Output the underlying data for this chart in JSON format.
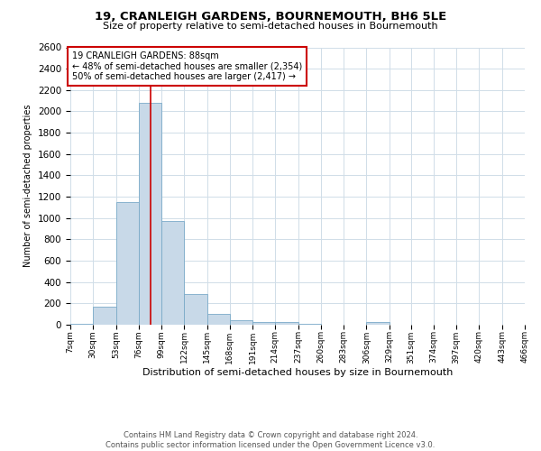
{
  "title": "19, CRANLEIGH GARDENS, BOURNEMOUTH, BH6 5LE",
  "subtitle": "Size of property relative to semi-detached houses in Bournemouth",
  "xlabel": "Distribution of semi-detached houses by size in Bournemouth",
  "ylabel": "Number of semi-detached properties",
  "footer_line1": "Contains HM Land Registry data © Crown copyright and database right 2024.",
  "footer_line2": "Contains public sector information licensed under the Open Government Licence v3.0.",
  "property_label": "19 CRANLEIGH GARDENS: 88sqm",
  "annotation_line2": "← 48% of semi-detached houses are smaller (2,354)",
  "annotation_line3": "50% of semi-detached houses are larger (2,417) →",
  "property_size": 88,
  "bin_edges": [
    7,
    30,
    53,
    76,
    99,
    122,
    145,
    168,
    191,
    214,
    237,
    260,
    283,
    306,
    329,
    351,
    374,
    397,
    420,
    443,
    466
  ],
  "bar_heights": [
    10,
    165,
    1150,
    2080,
    975,
    290,
    105,
    42,
    28,
    22,
    10,
    0,
    0,
    22,
    0,
    0,
    0,
    0,
    0,
    0
  ],
  "bar_color": "#c8d9e8",
  "bar_edge_color": "#7aaac8",
  "vline_color": "#cc0000",
  "vline_x": 88,
  "annotation_box_color": "#cc0000",
  "ylim": [
    0,
    2600
  ],
  "yticks": [
    0,
    200,
    400,
    600,
    800,
    1000,
    1200,
    1400,
    1600,
    1800,
    2000,
    2200,
    2400,
    2600
  ],
  "grid_color": "#d0dde8",
  "background_color": "#ffffff"
}
